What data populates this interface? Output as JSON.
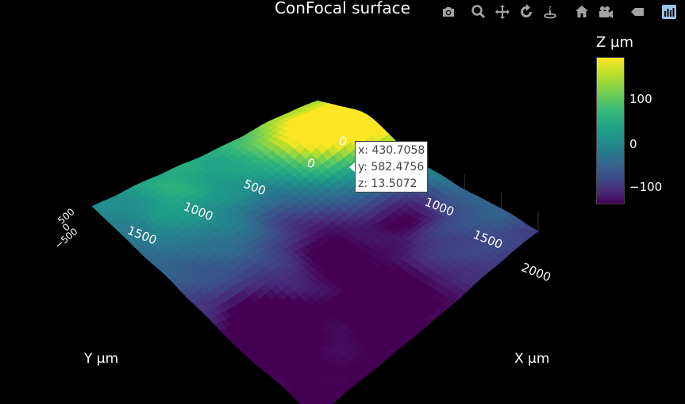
{
  "title": "ConFocal surface",
  "modebar": [
    {
      "name": "camera-icon",
      "label": "Download plot as a png"
    },
    {
      "name": "zoom-icon",
      "label": "Zoom"
    },
    {
      "name": "pan-icon",
      "label": "Pan"
    },
    {
      "name": "orbit-rotation-icon",
      "label": "Orbital rotation"
    },
    {
      "name": "turntable-rotation-icon",
      "label": "Turntable rotation"
    },
    {
      "name": "home-icon",
      "label": "Reset camera to default"
    },
    {
      "name": "camera-last-save-icon",
      "label": "Reset camera to last save"
    },
    {
      "name": "hover-toggle-icon",
      "label": "Toggle show closest data on hover"
    },
    {
      "name": "plotly-logo-icon",
      "label": "Produced with Plotly"
    }
  ],
  "chart_data": {
    "type": "surface",
    "title": "ConFocal surface",
    "xlabel": "X µm",
    "ylabel": "Y µm",
    "zlabel": "Z µm",
    "x_ticks": [
      "0",
      "500",
      "1000",
      "1500",
      "2000"
    ],
    "y_ticks": [
      "0",
      "500",
      "1000",
      "1500"
    ],
    "z_ticks": [
      "500",
      "0",
      "−500"
    ],
    "xlim": [
      0,
      2200
    ],
    "ylim": [
      0,
      2000
    ],
    "colorscale": "Viridis",
    "colorbar": {
      "title": "Z µm",
      "ticks": [
        "100",
        "0",
        "−100"
      ],
      "range": [
        -150,
        190
      ]
    },
    "bumps": [
      {
        "x": 350,
        "y": 350,
        "z": 170
      },
      {
        "x": 500,
        "y": -50,
        "z": 180
      },
      {
        "x": 1300,
        "y": 400,
        "z": -120
      },
      {
        "x": 1800,
        "y": 1000,
        "z": -130
      },
      {
        "x": 1200,
        "y": 950,
        "z": -110
      },
      {
        "x": 1400,
        "y": 1700,
        "z": -120
      },
      {
        "x": 800,
        "y": 900,
        "z": -60
      },
      {
        "x": 300,
        "y": 1500,
        "z": 40
      }
    ],
    "hover": {
      "x": "x: 430.7058",
      "y": "y: 582.4756",
      "z": "z: 13.5072"
    }
  },
  "colors": {
    "background": "#000000",
    "text": "#ffffff",
    "modebar_icon": "#a3a3a3",
    "modebar_active": "#9ec3e6"
  }
}
